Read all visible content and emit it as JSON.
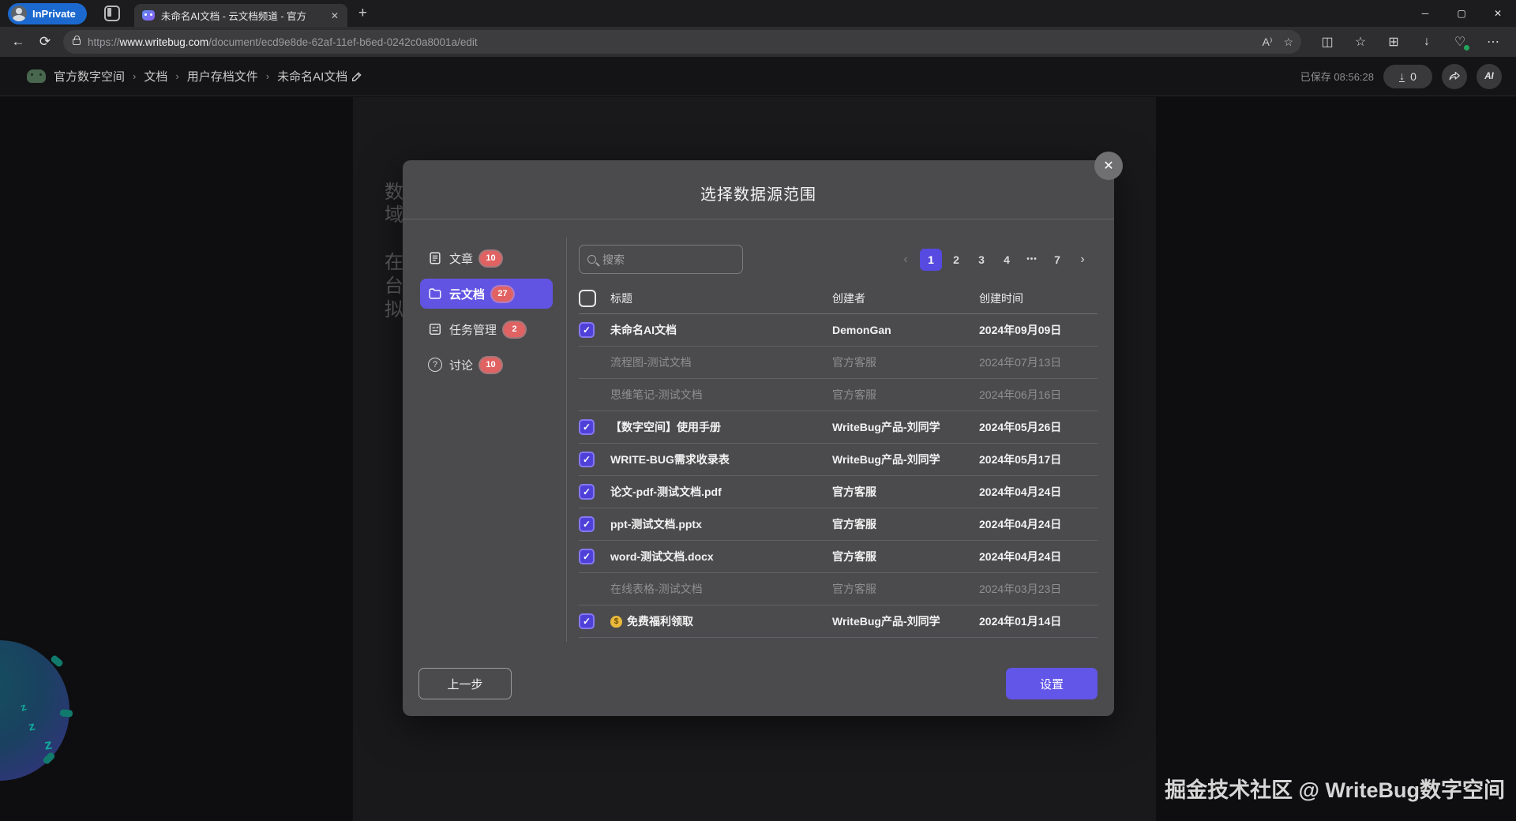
{
  "browser": {
    "inprivate_label": "InPrivate",
    "tab_title": "未命名AI文档 - 云文档频道 - 官方",
    "close_glyph": "✕",
    "new_tab_glyph": "+",
    "window_controls": {
      "minimize": "─",
      "maximize": "▢",
      "close": "✕"
    },
    "back_glyph": "←",
    "refresh_glyph": "⟳",
    "url_scheme": "https://",
    "url_host": "www.writebug.com",
    "url_path": "/document/ecd9e8de-62af-11ef-b6ed-0242c0a8001a/edit",
    "pill_icons": [
      {
        "name": "read-aloud-icon",
        "glyph": "A⁾"
      },
      {
        "name": "favorite-star-icon",
        "glyph": "☆"
      }
    ],
    "toolbar_icons": [
      {
        "name": "split-screen-icon",
        "glyph": "◫"
      },
      {
        "name": "favorites-list-icon",
        "glyph": "☆"
      },
      {
        "name": "collections-icon",
        "glyph": "⊞"
      },
      {
        "name": "download-icon",
        "glyph": "↓"
      },
      {
        "name": "browser-essentials-icon",
        "glyph": "♡"
      },
      {
        "name": "more-options-icon",
        "glyph": "⋯"
      }
    ]
  },
  "header": {
    "breadcrumb": [
      "官方数字空间",
      "文档",
      "用户存档文件",
      "未命名AI文档"
    ],
    "separator": "›",
    "saved_status": "已保存 08:56:28",
    "download_count": "0",
    "download_glyph": "↓",
    "ai_label": "AI"
  },
  "background_text": [
    "数",
    "域",
    "在",
    "台",
    "拟"
  ],
  "modal": {
    "title": "选择数据源范围",
    "close_glyph": "✕",
    "sidebar": [
      {
        "label": "文章",
        "count": "10",
        "icon": "article-icon",
        "selected": false
      },
      {
        "label": "云文档",
        "count": "27",
        "icon": "folder-icon",
        "selected": true
      },
      {
        "label": "任务管理",
        "count": "2",
        "icon": "tasks-icon",
        "selected": false
      },
      {
        "label": "讨论",
        "count": "10",
        "icon": "discussion-icon",
        "selected": false
      }
    ],
    "search_placeholder": "搜索",
    "pagination": {
      "prev": "‹",
      "next": "›",
      "pages": [
        "1",
        "2",
        "3",
        "4",
        "•••",
        "7"
      ],
      "active_page": "1"
    },
    "table": {
      "headers": [
        "标题",
        "创建者",
        "创建时间"
      ],
      "check_glyph": "✓",
      "rows": [
        {
          "title": "未命名AI文档",
          "creator": "DemonGan",
          "date": "2024年09月09日",
          "checked": true,
          "disabled": false
        },
        {
          "title": "流程图-测试文档",
          "creator": "官方客服",
          "date": "2024年07月13日",
          "checked": false,
          "disabled": true
        },
        {
          "title": "思维笔记-测试文档",
          "creator": "官方客服",
          "date": "2024年06月16日",
          "checked": false,
          "disabled": true
        },
        {
          "title": "【数字空间】使用手册",
          "creator": "WriteBug产品-刘同学",
          "date": "2024年05月26日",
          "checked": true,
          "disabled": false
        },
        {
          "title": "WRITE-BUG需求收录表",
          "creator": "WriteBug产品-刘同学",
          "date": "2024年05月17日",
          "checked": true,
          "disabled": false
        },
        {
          "title": "论文-pdf-测试文档.pdf",
          "creator": "官方客服",
          "date": "2024年04月24日",
          "checked": true,
          "disabled": false
        },
        {
          "title": "ppt-测试文档.pptx",
          "creator": "官方客服",
          "date": "2024年04月24日",
          "checked": true,
          "disabled": false
        },
        {
          "title": "word-测试文档.docx",
          "creator": "官方客服",
          "date": "2024年04月24日",
          "checked": true,
          "disabled": false
        },
        {
          "title": "在线表格-测试文档",
          "creator": "官方客服",
          "date": "2024年03月23日",
          "checked": false,
          "disabled": true
        },
        {
          "title": "免费福利领取",
          "creator": "WriteBug产品-刘同学",
          "date": "2024年01月14日",
          "checked": true,
          "disabled": false,
          "title_icon": "money-bag-icon",
          "title_icon_glyph": "$"
        }
      ]
    },
    "prev_button": "上一步",
    "confirm_button": "设置"
  },
  "watermark": "掘金技术社区 @ WriteBug数字空间",
  "colors": {
    "accent_purple": "#6254e3",
    "active_page_purple": "#564ae0",
    "confirm_purple": "#6156e8",
    "badge_red": "#e06262",
    "inprivate_blue": "#1b69cf"
  }
}
